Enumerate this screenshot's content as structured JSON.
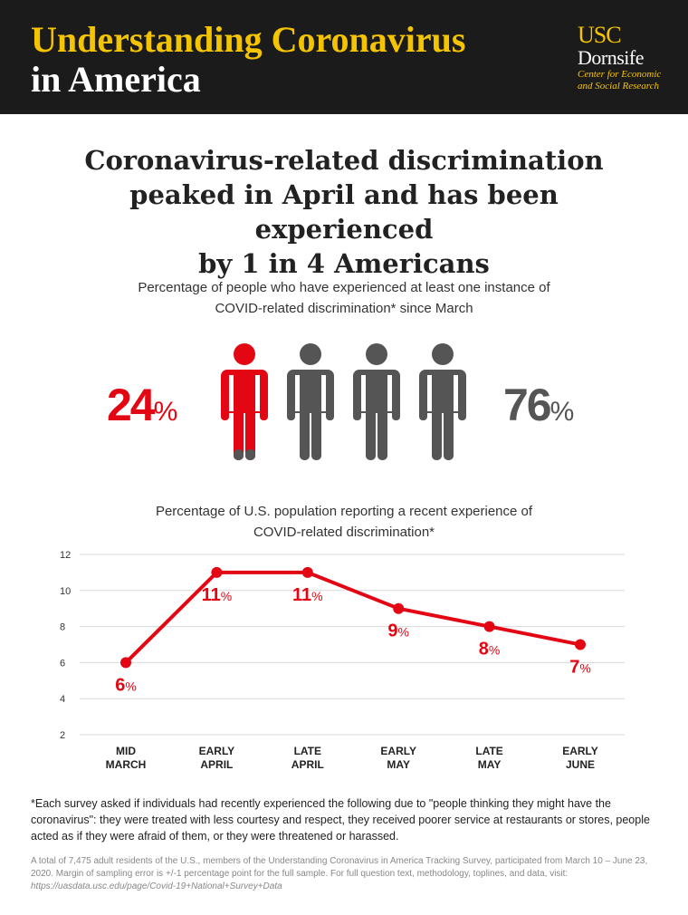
{
  "header": {
    "title_line1": "Understanding Coronavirus",
    "title_line2": "in America",
    "logo_usc": "USC",
    "logo_dornsife": "Dornsife",
    "logo_sub1": "Center for Economic",
    "logo_sub2": "and Social Research"
  },
  "headline": {
    "line1": "Coronavirus-related discrimination",
    "line2": "peaked in April and has been experienced",
    "line3": "by 1 in 4 Americans"
  },
  "pictogram": {
    "subtitle_line1": "Percentage of people who have experienced at least one instance of",
    "subtitle_line2": "COVID-related discrimination* since March",
    "experienced_value": "24",
    "experienced_symbol": "%",
    "not_experienced_value": "76",
    "not_experienced_symbol": "%",
    "experienced_color": "#e30613",
    "not_experienced_color": "#555555",
    "figures_total": 4,
    "figures_highlighted": 1
  },
  "chart_subtitle": {
    "line1": "Percentage of U.S. population reporting a recent experience of",
    "line2": "COVID-related discrimination*"
  },
  "chart_data": {
    "type": "line",
    "categories": [
      "MID MARCH",
      "EARLY APRIL",
      "LATE APRIL",
      "EARLY MAY",
      "LATE MAY",
      "EARLY JUNE"
    ],
    "category_lines": [
      [
        "MID",
        "MARCH"
      ],
      [
        "EARLY",
        "APRIL"
      ],
      [
        "LATE",
        "APRIL"
      ],
      [
        "EARLY",
        "MAY"
      ],
      [
        "LATE",
        "MAY"
      ],
      [
        "EARLY",
        "JUNE"
      ]
    ],
    "values": [
      6,
      11,
      11,
      9,
      8,
      7
    ],
    "data_labels": [
      "6",
      "11",
      "11",
      "9",
      "8",
      "7"
    ],
    "label_symbol": "%",
    "label_position": [
      "below",
      "below",
      "below",
      "below",
      "below",
      "below"
    ],
    "ylim": [
      2,
      12
    ],
    "yticks": [
      2,
      4,
      6,
      8,
      10,
      12
    ],
    "grid": true,
    "line_color": "#e30613",
    "xlabel": "",
    "ylabel": ""
  },
  "footnote": {
    "note": "*Each survey asked if individuals had recently experienced the following due to \"people thinking they might have the coronavirus\": they were treated with less courtesy and respect, they received poorer service at restaurants or stores, people acted as if they were afraid of them, or they were threatened or harassed.",
    "fine_print": "A total of 7,475 adult residents of the U.S., members of the Understanding Coronavirus in America Tracking Survey, participated from March 10 – June 23, 2020. Margin of sampling error is +/-1 percentage point for the full sample. For full question text, methodology, toplines, and data, visit:",
    "url": "https://uasdata.usc.edu/page/Covid-19+National+Survey+Data"
  }
}
